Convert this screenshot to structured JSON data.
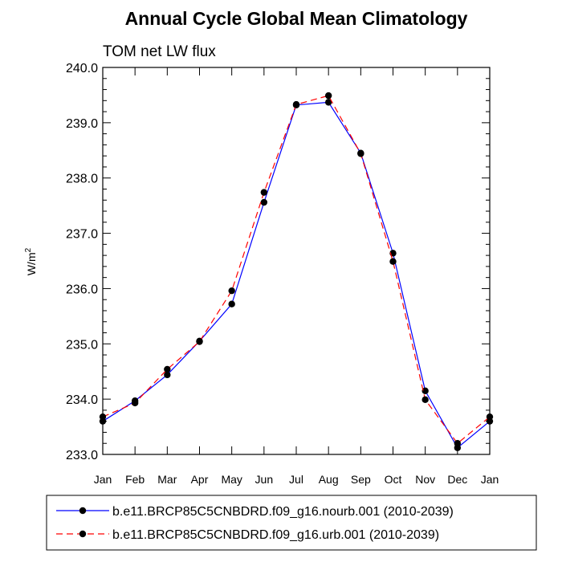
{
  "chart_data": {
    "type": "line",
    "title": "Annual Cycle Global Mean Climatology",
    "subtitle": "TOM net LW flux",
    "xlabel": "",
    "ylabel": "W/m",
    "ylabel_superscript": "2",
    "ylim": [
      233.0,
      240.0
    ],
    "yticks": [
      "233.0",
      "234.0",
      "235.0",
      "236.0",
      "237.0",
      "238.0",
      "239.0",
      "240.0"
    ],
    "categories": [
      "Jan",
      "Feb",
      "Mar",
      "Apr",
      "May",
      "Jun",
      "Jul",
      "Aug",
      "Sep",
      "Oct",
      "Nov",
      "Dec",
      "Jan"
    ],
    "grid": false,
    "legend_position": "bottom",
    "series": [
      {
        "name": "b.e11.BRCP85C5CNBDRD.f09_g16.nourb.001 (2010-2039)",
        "color": "#0000ff",
        "dash": "solid",
        "marker": "filled-circle",
        "values": [
          233.6,
          233.97,
          234.44,
          235.05,
          235.72,
          237.56,
          239.32,
          239.37,
          238.45,
          236.64,
          234.15,
          233.12,
          233.6
        ]
      },
      {
        "name": "b.e11.BRCP85C5CNBDRD.f09_g16.urb.001 (2010-2039)",
        "color": "#ff0000",
        "dash": "dashed",
        "marker": "filled-circle",
        "values": [
          233.68,
          233.93,
          234.54,
          235.04,
          235.96,
          237.74,
          239.33,
          239.49,
          238.44,
          236.49,
          233.99,
          233.2,
          233.68
        ]
      }
    ]
  }
}
